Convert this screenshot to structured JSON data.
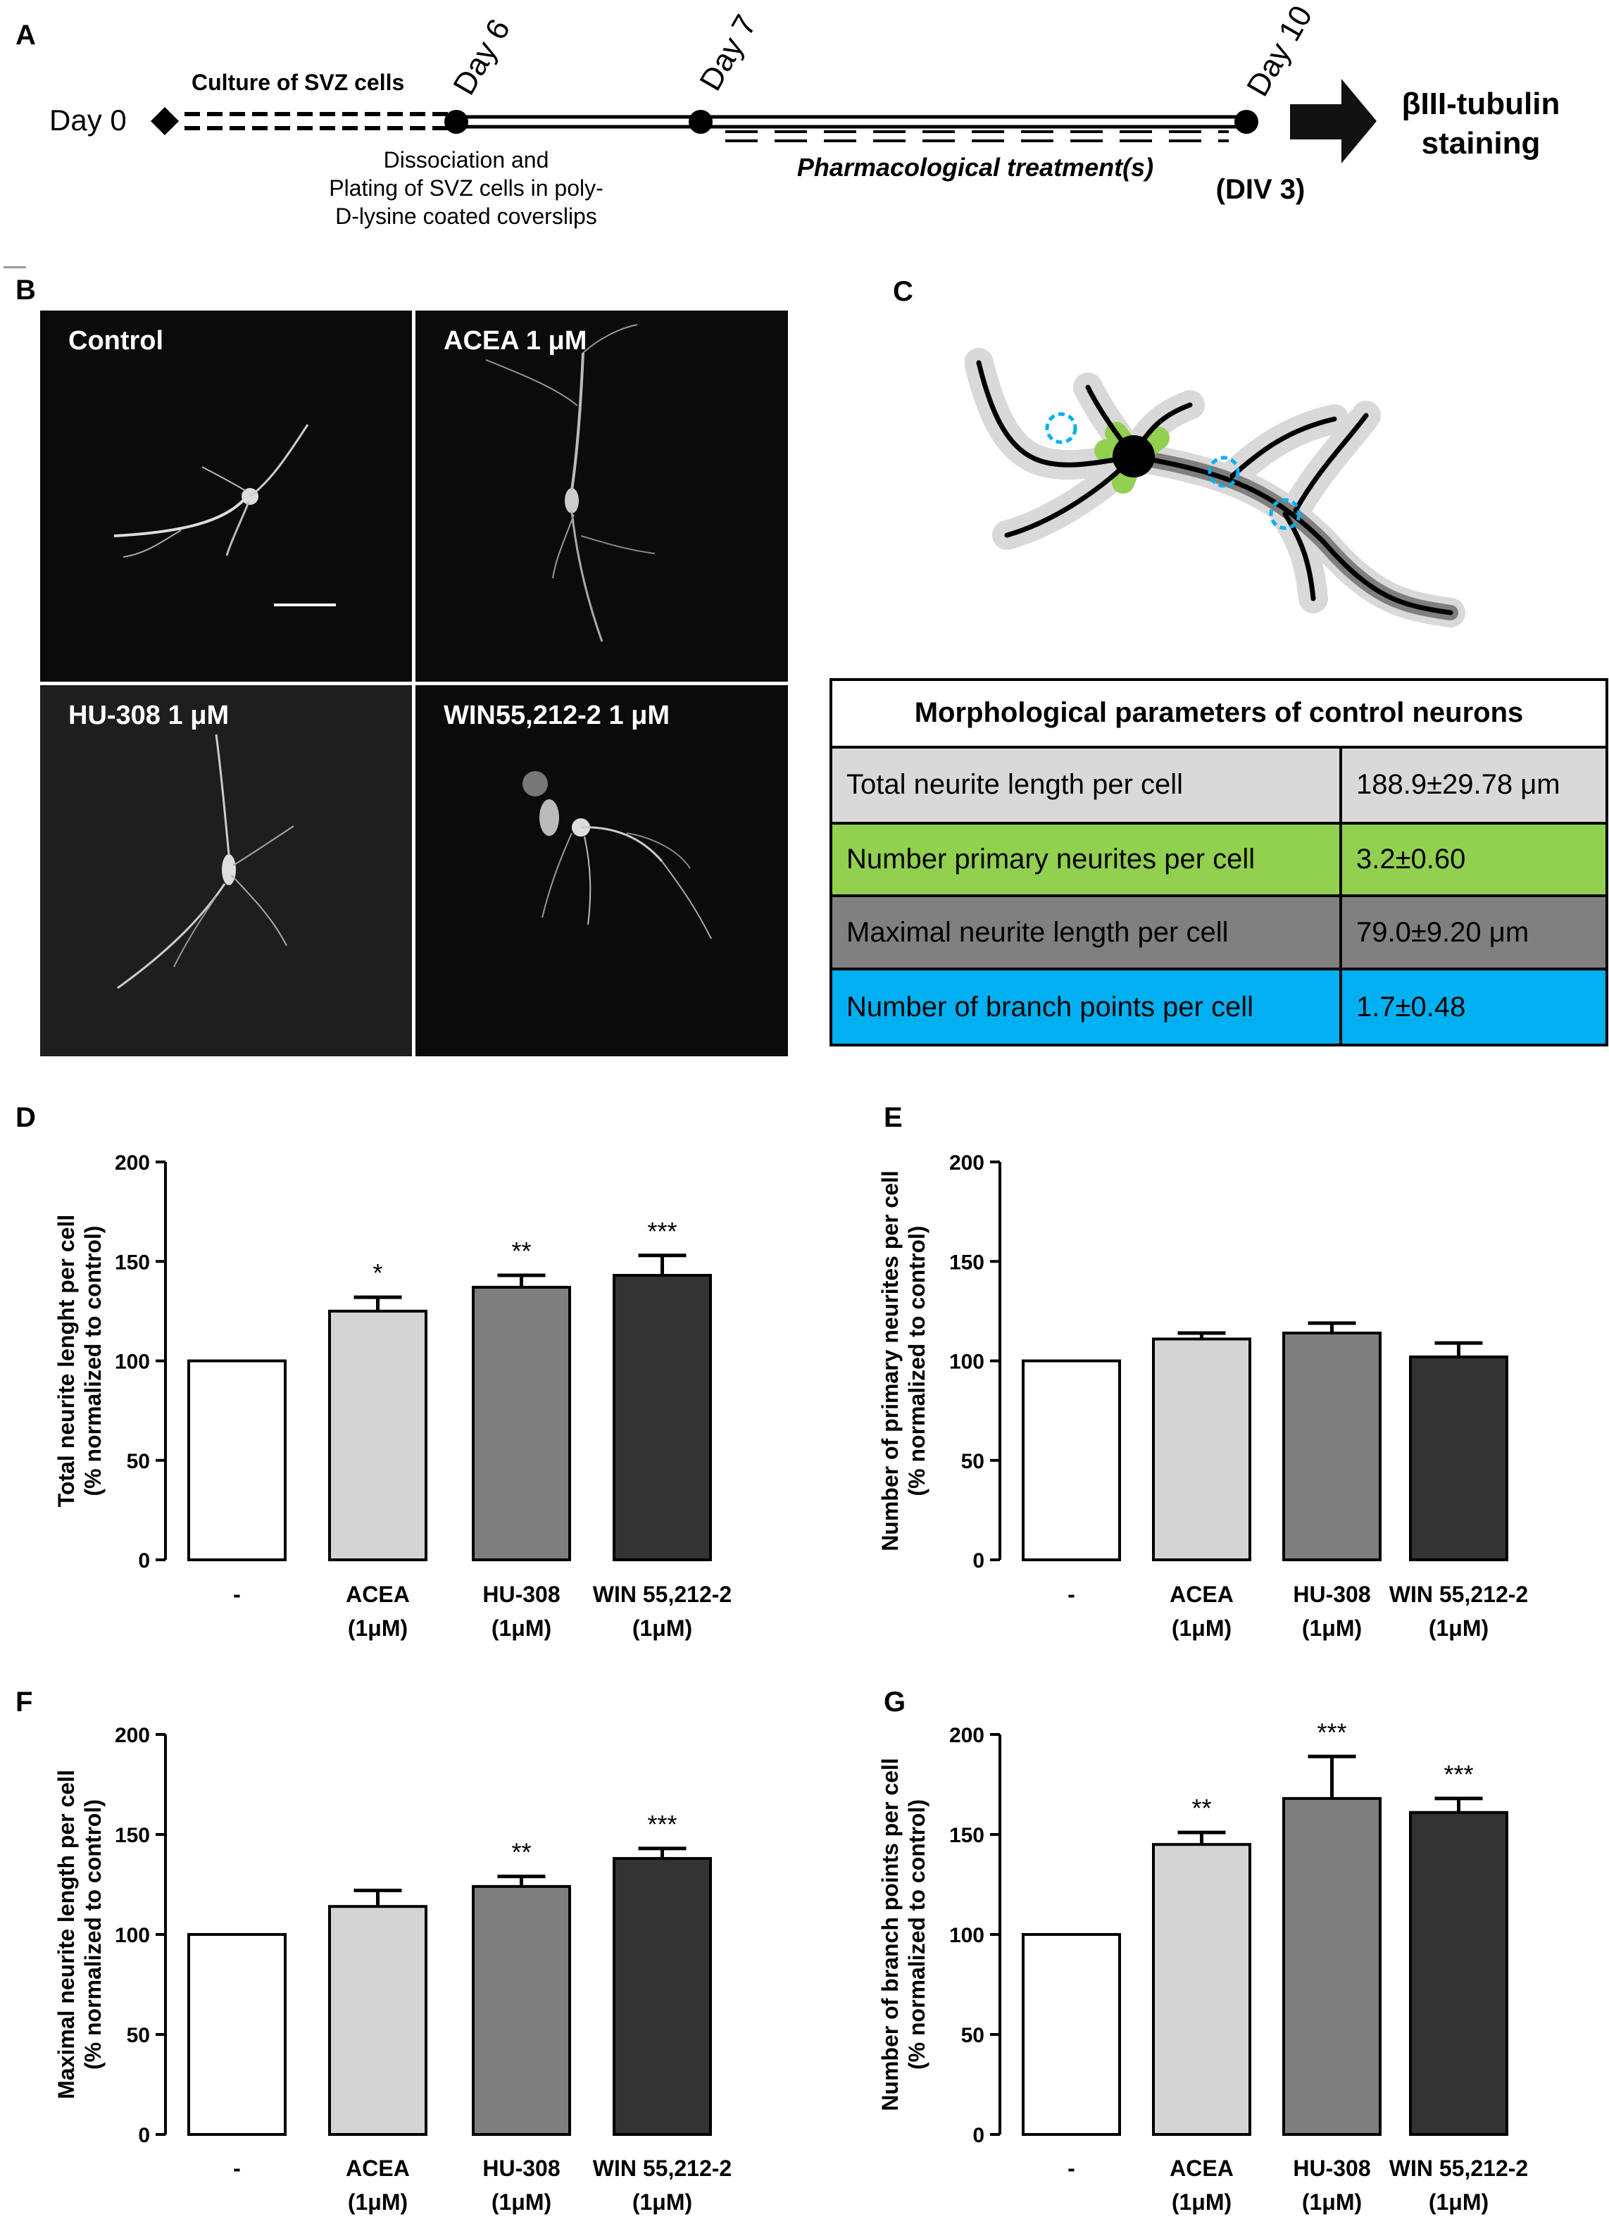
{
  "panels": {
    "a": "A",
    "b": "B",
    "c": "C",
    "d": "D",
    "e": "E",
    "f": "F",
    "g": "G"
  },
  "timeline": {
    "day0": "Day 0",
    "day6": "Day 6",
    "day7": "Day 7",
    "day10": "Day 10",
    "culture": "Culture of SVZ cells",
    "dissociation_lines": [
      "Dissociation and",
      "Plating of SVZ cells in poly-",
      "D-lysine coated coverslips"
    ],
    "treatment": "Pharmacological treatment(s)",
    "div": "(DIV 3)",
    "staining_lines": [
      "βIII-tubulin",
      "staining"
    ]
  },
  "micrographs": [
    {
      "label": "Control"
    },
    {
      "label": "ACEA 1 μM"
    },
    {
      "label": "HU-308 1 μM"
    },
    {
      "label": "WIN55,212-2 1 μM"
    }
  ],
  "morph_table": {
    "title": "Morphological parameters of control neurons",
    "rows": [
      {
        "param": "Total neurite length per cell",
        "value": "188.9±29.78 μm",
        "color": "#d9d9d9"
      },
      {
        "param": "Number primary neurites per cell",
        "value": "3.2±0.60",
        "color": "#92d050"
      },
      {
        "param": "Maximal neurite length per cell",
        "value": "79.0±9.20 μm",
        "color": "#808080"
      },
      {
        "param": "Number of branch points per cell",
        "value": "1.7±0.48",
        "color": "#00b0f0"
      }
    ]
  },
  "colors": {
    "bars": [
      "#ffffff",
      "#d4d4d4",
      "#7f7f7f",
      "#333333"
    ],
    "gray_layer": "#d9d9d9",
    "green_layer": "#92d050",
    "blue_circles": "#00b0f0"
  },
  "chart_data": [
    {
      "panel": "D",
      "type": "bar",
      "categories": [
        [
          "-"
        ],
        [
          "ACEA",
          "(1μM)"
        ],
        [
          "HU-308",
          "(1μM)"
        ],
        [
          "WIN 55,212-2",
          "(1μM)"
        ]
      ],
      "values": [
        100,
        125,
        137,
        143
      ],
      "errors": [
        0,
        7,
        6,
        10
      ],
      "significance": [
        "",
        "*",
        "**",
        "***"
      ],
      "ylabel": [
        "Total neurite lenght per cell",
        "(% normalized to control)"
      ],
      "ylim": [
        0,
        200
      ],
      "yticks": [
        0,
        50,
        100,
        150,
        200
      ]
    },
    {
      "panel": "E",
      "type": "bar",
      "categories": [
        [
          "-"
        ],
        [
          "ACEA",
          "(1μM)"
        ],
        [
          "HU-308",
          "(1μM)"
        ],
        [
          "WIN 55,212-2",
          "(1μM)"
        ]
      ],
      "values": [
        100,
        111,
        114,
        102
      ],
      "errors": [
        0,
        3,
        5,
        7
      ],
      "significance": [
        "",
        "",
        "",
        ""
      ],
      "ylabel": [
        "Number of primary neurites per cell",
        "(% normalized to control)"
      ],
      "ylim": [
        0,
        200
      ],
      "yticks": [
        0,
        50,
        100,
        150,
        200
      ]
    },
    {
      "panel": "F",
      "type": "bar",
      "categories": [
        [
          "-"
        ],
        [
          "ACEA",
          "(1μM)"
        ],
        [
          "HU-308",
          "(1μM)"
        ],
        [
          "WIN 55,212-2",
          "(1μM)"
        ]
      ],
      "values": [
        100,
        114,
        124,
        138
      ],
      "errors": [
        0,
        8,
        5,
        5
      ],
      "significance": [
        "",
        "",
        "**",
        "***"
      ],
      "ylabel": [
        "Maximal neurite length per cell",
        "(% normalized to control)"
      ],
      "ylim": [
        0,
        200
      ],
      "yticks": [
        0,
        50,
        100,
        150,
        200
      ]
    },
    {
      "panel": "G",
      "type": "bar",
      "categories": [
        [
          "-"
        ],
        [
          "ACEA",
          "(1μM)"
        ],
        [
          "HU-308",
          "(1μM)"
        ],
        [
          "WIN 55,212-2",
          "(1μM)"
        ]
      ],
      "values": [
        100,
        145,
        168,
        161
      ],
      "errors": [
        0,
        6,
        21,
        7
      ],
      "significance": [
        "",
        "**",
        "***",
        "***"
      ],
      "ylabel": [
        "Number of branch points per cell",
        "(% normalized to control)"
      ],
      "ylim": [
        0,
        200
      ],
      "yticks": [
        0,
        50,
        100,
        150,
        200
      ]
    }
  ]
}
